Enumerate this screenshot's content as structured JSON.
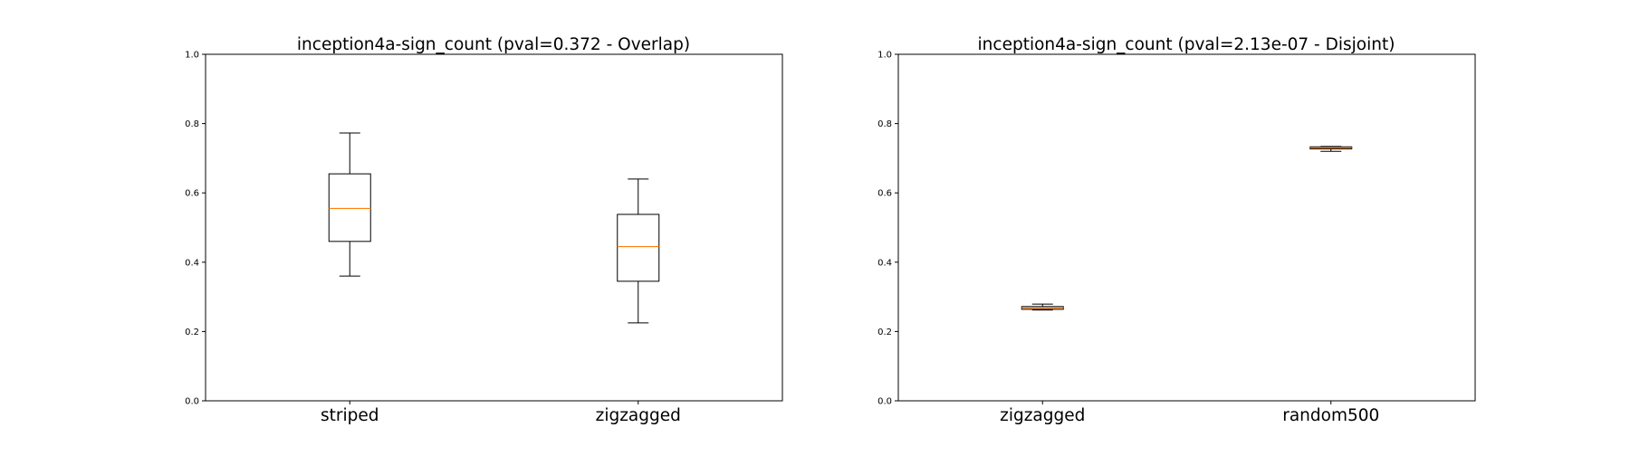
{
  "chart_data": [
    {
      "type": "box",
      "title": "inception4a-sign_count (pval=0.372 - Overlap)",
      "xlabel": "",
      "ylabel": "",
      "ylim": [
        0.0,
        1.0
      ],
      "yticks": [
        "0.0",
        "0.2",
        "0.4",
        "0.6",
        "0.8",
        "1.0"
      ],
      "grid": false,
      "categories": [
        "striped",
        "zigzagged"
      ],
      "boxes": [
        {
          "name": "striped",
          "whisker_low": 0.36,
          "q1": 0.46,
          "median": 0.555,
          "q3": 0.655,
          "whisker_high": 0.773
        },
        {
          "name": "zigzagged",
          "whisker_low": 0.225,
          "q1": 0.345,
          "median": 0.445,
          "q3": 0.538,
          "whisker_high": 0.64
        }
      ]
    },
    {
      "type": "box",
      "title": "inception4a-sign_count (pval=2.13e-07 - Disjoint)",
      "xlabel": "",
      "ylabel": "",
      "ylim": [
        0.0,
        1.0
      ],
      "yticks": [
        "0.0",
        "0.2",
        "0.4",
        "0.6",
        "0.8",
        "1.0"
      ],
      "grid": false,
      "categories": [
        "zigzagged",
        "random500"
      ],
      "boxes": [
        {
          "name": "zigzagged",
          "whisker_low": 0.262,
          "q1": 0.264,
          "median": 0.268,
          "q3": 0.272,
          "whisker_high": 0.279
        },
        {
          "name": "random500",
          "whisker_low": 0.72,
          "q1": 0.727,
          "median": 0.73,
          "q3": 0.733,
          "whisker_high": 0.734
        }
      ]
    }
  ],
  "colors": {
    "median": "#ff7f0e",
    "box": "#000000",
    "axis": "#000000"
  }
}
